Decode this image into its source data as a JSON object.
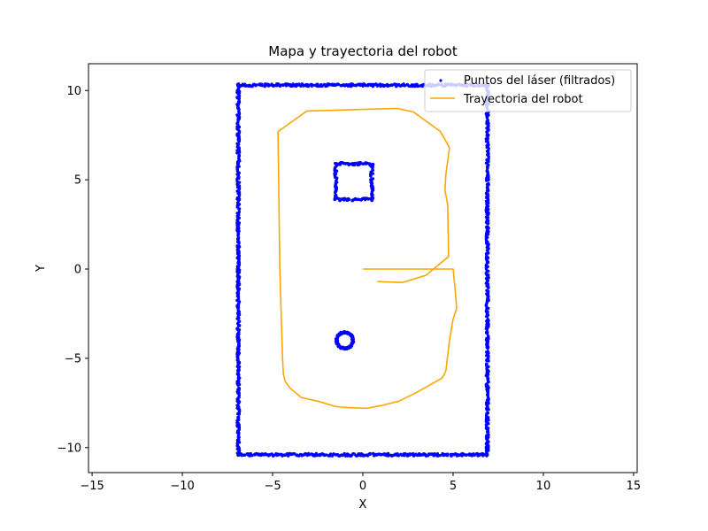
{
  "chart_data": {
    "type": "scatter",
    "title": "Mapa y trayectoria del robot",
    "xlabel": "X",
    "ylabel": "Y",
    "xlim": [
      -15.2,
      15.2
    ],
    "ylim": [
      -11.4,
      11.5
    ],
    "xticks": [
      -15,
      -10,
      -5,
      0,
      5,
      10,
      15
    ],
    "yticks": [
      -10,
      -5,
      0,
      5,
      10
    ],
    "tick_labels_x": [
      "−15",
      "−10",
      "−5",
      "0",
      "5",
      "10",
      "15"
    ],
    "tick_labels_y": [
      "−10",
      "−5",
      "0",
      "5",
      "10"
    ],
    "grid": false,
    "legend_placement": "top-right",
    "colors": {
      "laser": "#0000ff",
      "trajectory": "#ffa500"
    },
    "series": [
      {
        "name": "Puntos del láser (filtrados)",
        "kind": "scatter",
        "shapes": [
          {
            "shape": "rectangle",
            "x": [
              -6.9,
              6.9
            ],
            "y": [
              -10.4,
              10.3
            ]
          },
          {
            "shape": "rectangle",
            "x": [
              -1.5,
              0.5
            ],
            "y": [
              3.9,
              5.9
            ]
          },
          {
            "shape": "circle",
            "cx": -1.0,
            "cy": -4.0,
            "r": 0.45
          }
        ]
      },
      {
        "name": "Trayectoria del robot",
        "kind": "line",
        "points": [
          [
            0,
            0
          ],
          [
            5.0,
            0
          ],
          [
            5.1,
            -1.0
          ],
          [
            5.2,
            -2.2
          ],
          [
            5.0,
            -2.8
          ],
          [
            4.8,
            -4.0
          ],
          [
            4.6,
            -5.7
          ],
          [
            4.4,
            -6.1
          ],
          [
            3.0,
            -6.9
          ],
          [
            2.0,
            -7.4
          ],
          [
            1.0,
            -7.65
          ],
          [
            0.2,
            -7.8
          ],
          [
            -1.0,
            -7.75
          ],
          [
            -1.5,
            -7.7
          ],
          [
            -2.5,
            -7.4
          ],
          [
            -3.4,
            -7.2
          ],
          [
            -4.0,
            -6.7
          ],
          [
            -4.3,
            -6.3
          ],
          [
            -4.4,
            -5.9
          ],
          [
            -4.45,
            -5.0
          ],
          [
            -4.6,
            0
          ],
          [
            -4.7,
            7.7
          ],
          [
            -3.1,
            8.85
          ],
          [
            1.9,
            9.0
          ],
          [
            2.8,
            8.8
          ],
          [
            4.3,
            7.7
          ],
          [
            4.8,
            6.8
          ],
          [
            4.6,
            5.3
          ],
          [
            4.55,
            4.4
          ],
          [
            4.7,
            3.6
          ],
          [
            4.75,
            0.7
          ],
          [
            3.5,
            -0.35
          ],
          [
            2.2,
            -0.75
          ],
          [
            0.8,
            -0.7
          ]
        ]
      }
    ]
  }
}
